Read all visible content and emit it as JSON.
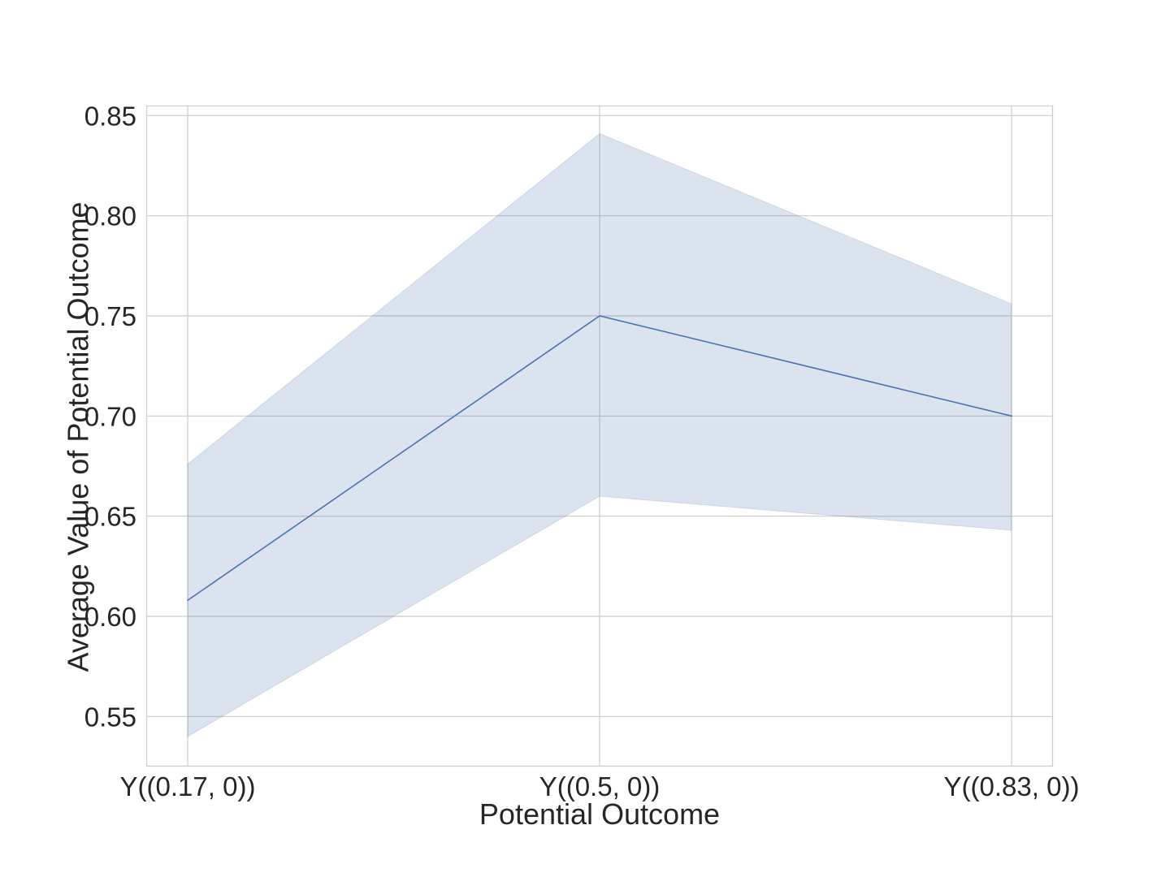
{
  "chart_data": {
    "type": "line",
    "title": "",
    "xlabel": "Potential Outcome",
    "ylabel": "Average Value of Potential Outcome",
    "categories": [
      "Y((0.17, 0))",
      "Y((0.5, 0))",
      "Y((0.83, 0))"
    ],
    "series": [
      {
        "values": [
          0.608,
          0.75,
          0.7
        ],
        "ci_lower": [
          0.54,
          0.66,
          0.643
        ],
        "ci_upper": [
          0.676,
          0.841,
          0.756
        ],
        "color": "#4c72b0"
      }
    ],
    "y_ticks": [
      0.55,
      0.6,
      0.65,
      0.7,
      0.75,
      0.8,
      0.85
    ],
    "y_tick_labels": [
      "0.55",
      "0.60",
      "0.65",
      "0.70",
      "0.75",
      "0.80",
      "0.85"
    ],
    "ylim": [
      0.525,
      0.855
    ],
    "grid": true,
    "legend": "none",
    "colors": {
      "line": "#4c72b0",
      "band": "#4c72b0",
      "grid": "#cccccc",
      "spine": "#cccccc",
      "text": "#262626"
    }
  }
}
